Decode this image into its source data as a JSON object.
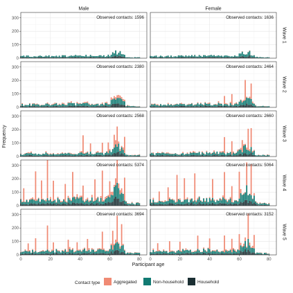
{
  "chart_data": {
    "type": "bar",
    "xlabel": "Participant age",
    "ylabel": "Frequency",
    "xlim": [
      0,
      85
    ],
    "ylim": [
      0,
      340
    ],
    "x_ticks": [
      0,
      20,
      40,
      60,
      80
    ],
    "y_ticks": [
      0,
      100,
      200,
      300
    ],
    "columns": [
      "Male",
      "Female"
    ],
    "rows": [
      "Wave 1",
      "Wave 2",
      "Wave 3",
      "Wave 4",
      "Wave 5"
    ],
    "annotation_prefix": "Observed contacts:",
    "observed_contacts": [
      [
        1596,
        1636
      ],
      [
        2380,
        2464
      ],
      [
        2568,
        2660
      ],
      [
        5374,
        5064
      ],
      [
        3694,
        3152
      ]
    ],
    "legend_title": "Contact type",
    "series": [
      {
        "name": "Aggregated",
        "color": "#F08A74"
      },
      {
        "name": "Non-household",
        "color": "#117A72"
      },
      {
        "name": "Household",
        "color": "#1B2F33"
      }
    ],
    "aggregated_spikes": [
      [
        [],
        []
      ],
      [
        [],
        [
          [
            50,
            60
          ],
          [
            55,
            80
          ],
          [
            64,
            150
          ],
          [
            68,
            115
          ]
        ]
      ],
      [
        [
          [
            42,
            135
          ],
          [
            47,
            60
          ],
          [
            55,
            75
          ],
          [
            59,
            80
          ],
          [
            63,
            95
          ],
          [
            65,
            150
          ],
          [
            70,
            120
          ]
        ],
        [
          [
            50,
            120
          ],
          [
            55,
            100
          ],
          [
            62,
            90
          ],
          [
            66,
            160
          ],
          [
            68,
            140
          ]
        ]
      ],
      [
        [
          [
            2,
            100
          ],
          [
            10,
            220
          ],
          [
            14,
            140
          ],
          [
            18,
            330
          ],
          [
            22,
            150
          ],
          [
            30,
            130
          ],
          [
            35,
            190
          ],
          [
            42,
            110
          ],
          [
            50,
            160
          ],
          [
            55,
            230
          ],
          [
            60,
            120
          ],
          [
            65,
            250
          ],
          [
            70,
            170
          ]
        ],
        [
          [
            6,
            70
          ],
          [
            12,
            100
          ],
          [
            18,
            200
          ],
          [
            23,
            160
          ],
          [
            30,
            200
          ],
          [
            42,
            140
          ],
          [
            50,
            200
          ],
          [
            55,
            120
          ],
          [
            60,
            200
          ],
          [
            65,
            170
          ],
          [
            68,
            230
          ]
        ]
      ],
      [
        [
          [
            5,
            60
          ],
          [
            10,
            95
          ],
          [
            18,
            180
          ],
          [
            22,
            60
          ],
          [
            32,
            90
          ],
          [
            38,
            60
          ],
          [
            45,
            90
          ],
          [
            55,
            135
          ],
          [
            62,
            140
          ],
          [
            65,
            195
          ],
          [
            68,
            160
          ]
        ],
        [
          [
            5,
            60
          ],
          [
            13,
            80
          ],
          [
            20,
            70
          ],
          [
            32,
            100
          ],
          [
            40,
            80
          ],
          [
            50,
            125
          ],
          [
            55,
            100
          ],
          [
            60,
            120
          ],
          [
            66,
            190
          ],
          [
            70,
            100
          ]
        ]
      ]
    ]
  }
}
